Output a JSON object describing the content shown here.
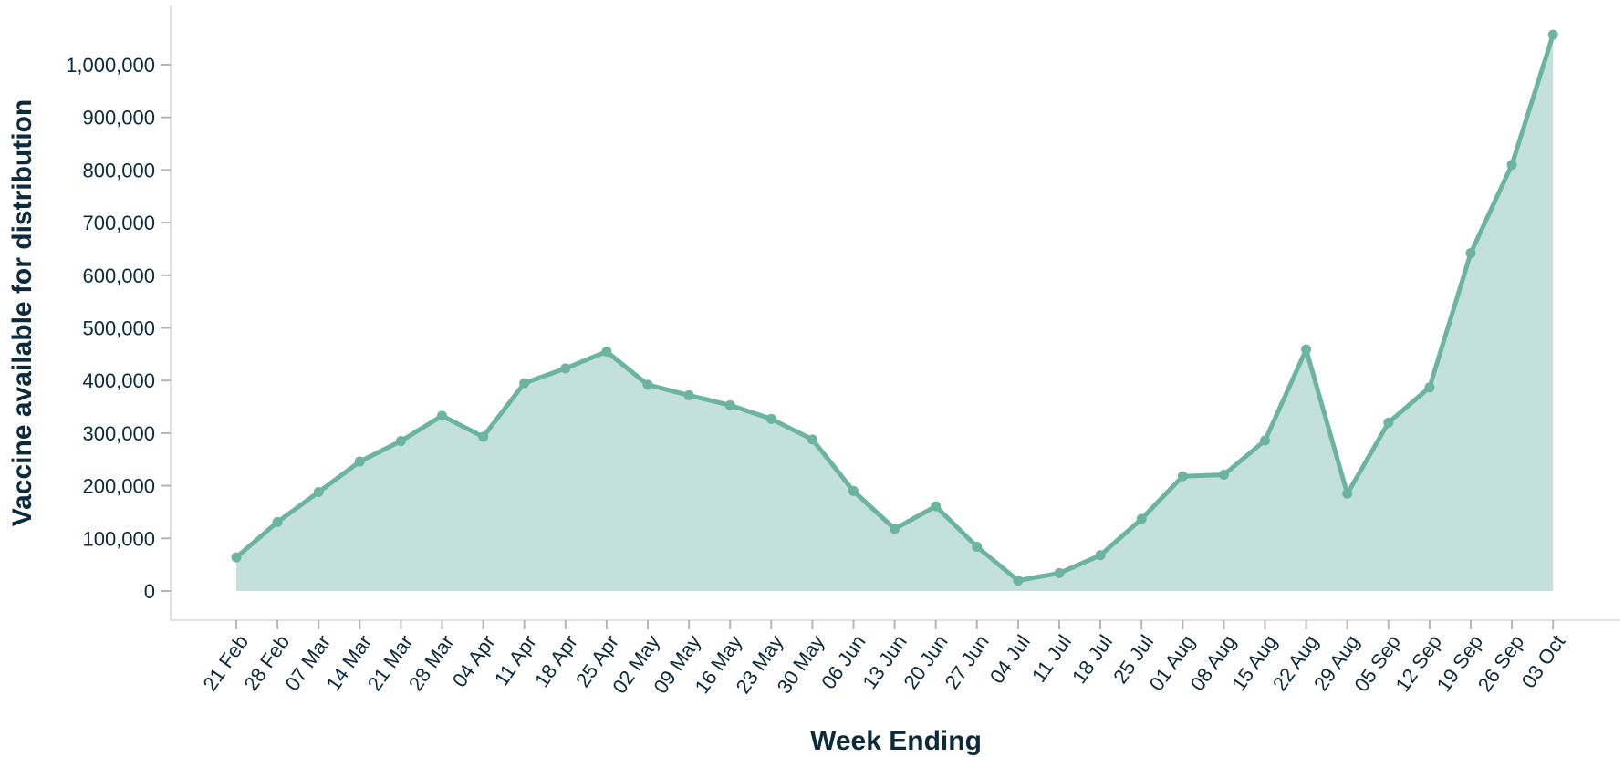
{
  "chart_data": {
    "type": "area",
    "categories": [
      "21 Feb",
      "28 Feb",
      "07 Mar",
      "14 Mar",
      "21 Mar",
      "28 Mar",
      "04 Apr",
      "11 Apr",
      "18 Apr",
      "25 Apr",
      "02 May",
      "09 May",
      "16 May",
      "23 May",
      "30 May",
      "06 Jun",
      "13 Jun",
      "20 Jun",
      "27 Jun",
      "04 Jul",
      "11 Jul",
      "18 Jul",
      "25 Jul",
      "01 Aug",
      "08 Aug",
      "15 Aug",
      "22 Aug",
      "29 Aug",
      "05 Sep",
      "12 Sep",
      "19 Sep",
      "26 Sep",
      "03 Oct"
    ],
    "values": [
      64000,
      131000,
      188000,
      246000,
      285000,
      333000,
      293000,
      395000,
      423000,
      455000,
      392000,
      372000,
      353000,
      327000,
      288000,
      190000,
      118000,
      161000,
      84000,
      20000,
      34000,
      68000,
      137000,
      218000,
      221000,
      286000,
      459000,
      185000,
      320000,
      387000,
      642000,
      810000,
      1057000
    ],
    "xlabel": "Week Ending",
    "ylabel": "Vaccine available for distribution",
    "ylim": [
      0,
      1000000
    ],
    "yticks": [
      "0",
      "100,000",
      "200,000",
      "300,000",
      "400,000",
      "500,000",
      "600,000",
      "700,000",
      "800,000",
      "900,000",
      "1,000,000"
    ],
    "ytick_values": [
      0,
      100000,
      200000,
      300000,
      400000,
      500000,
      600000,
      700000,
      800000,
      900000,
      1000000
    ],
    "grid": false,
    "colors": {
      "line": "#6ab4a0",
      "area": "#c3e1da",
      "text": "#0b2a3c"
    }
  }
}
